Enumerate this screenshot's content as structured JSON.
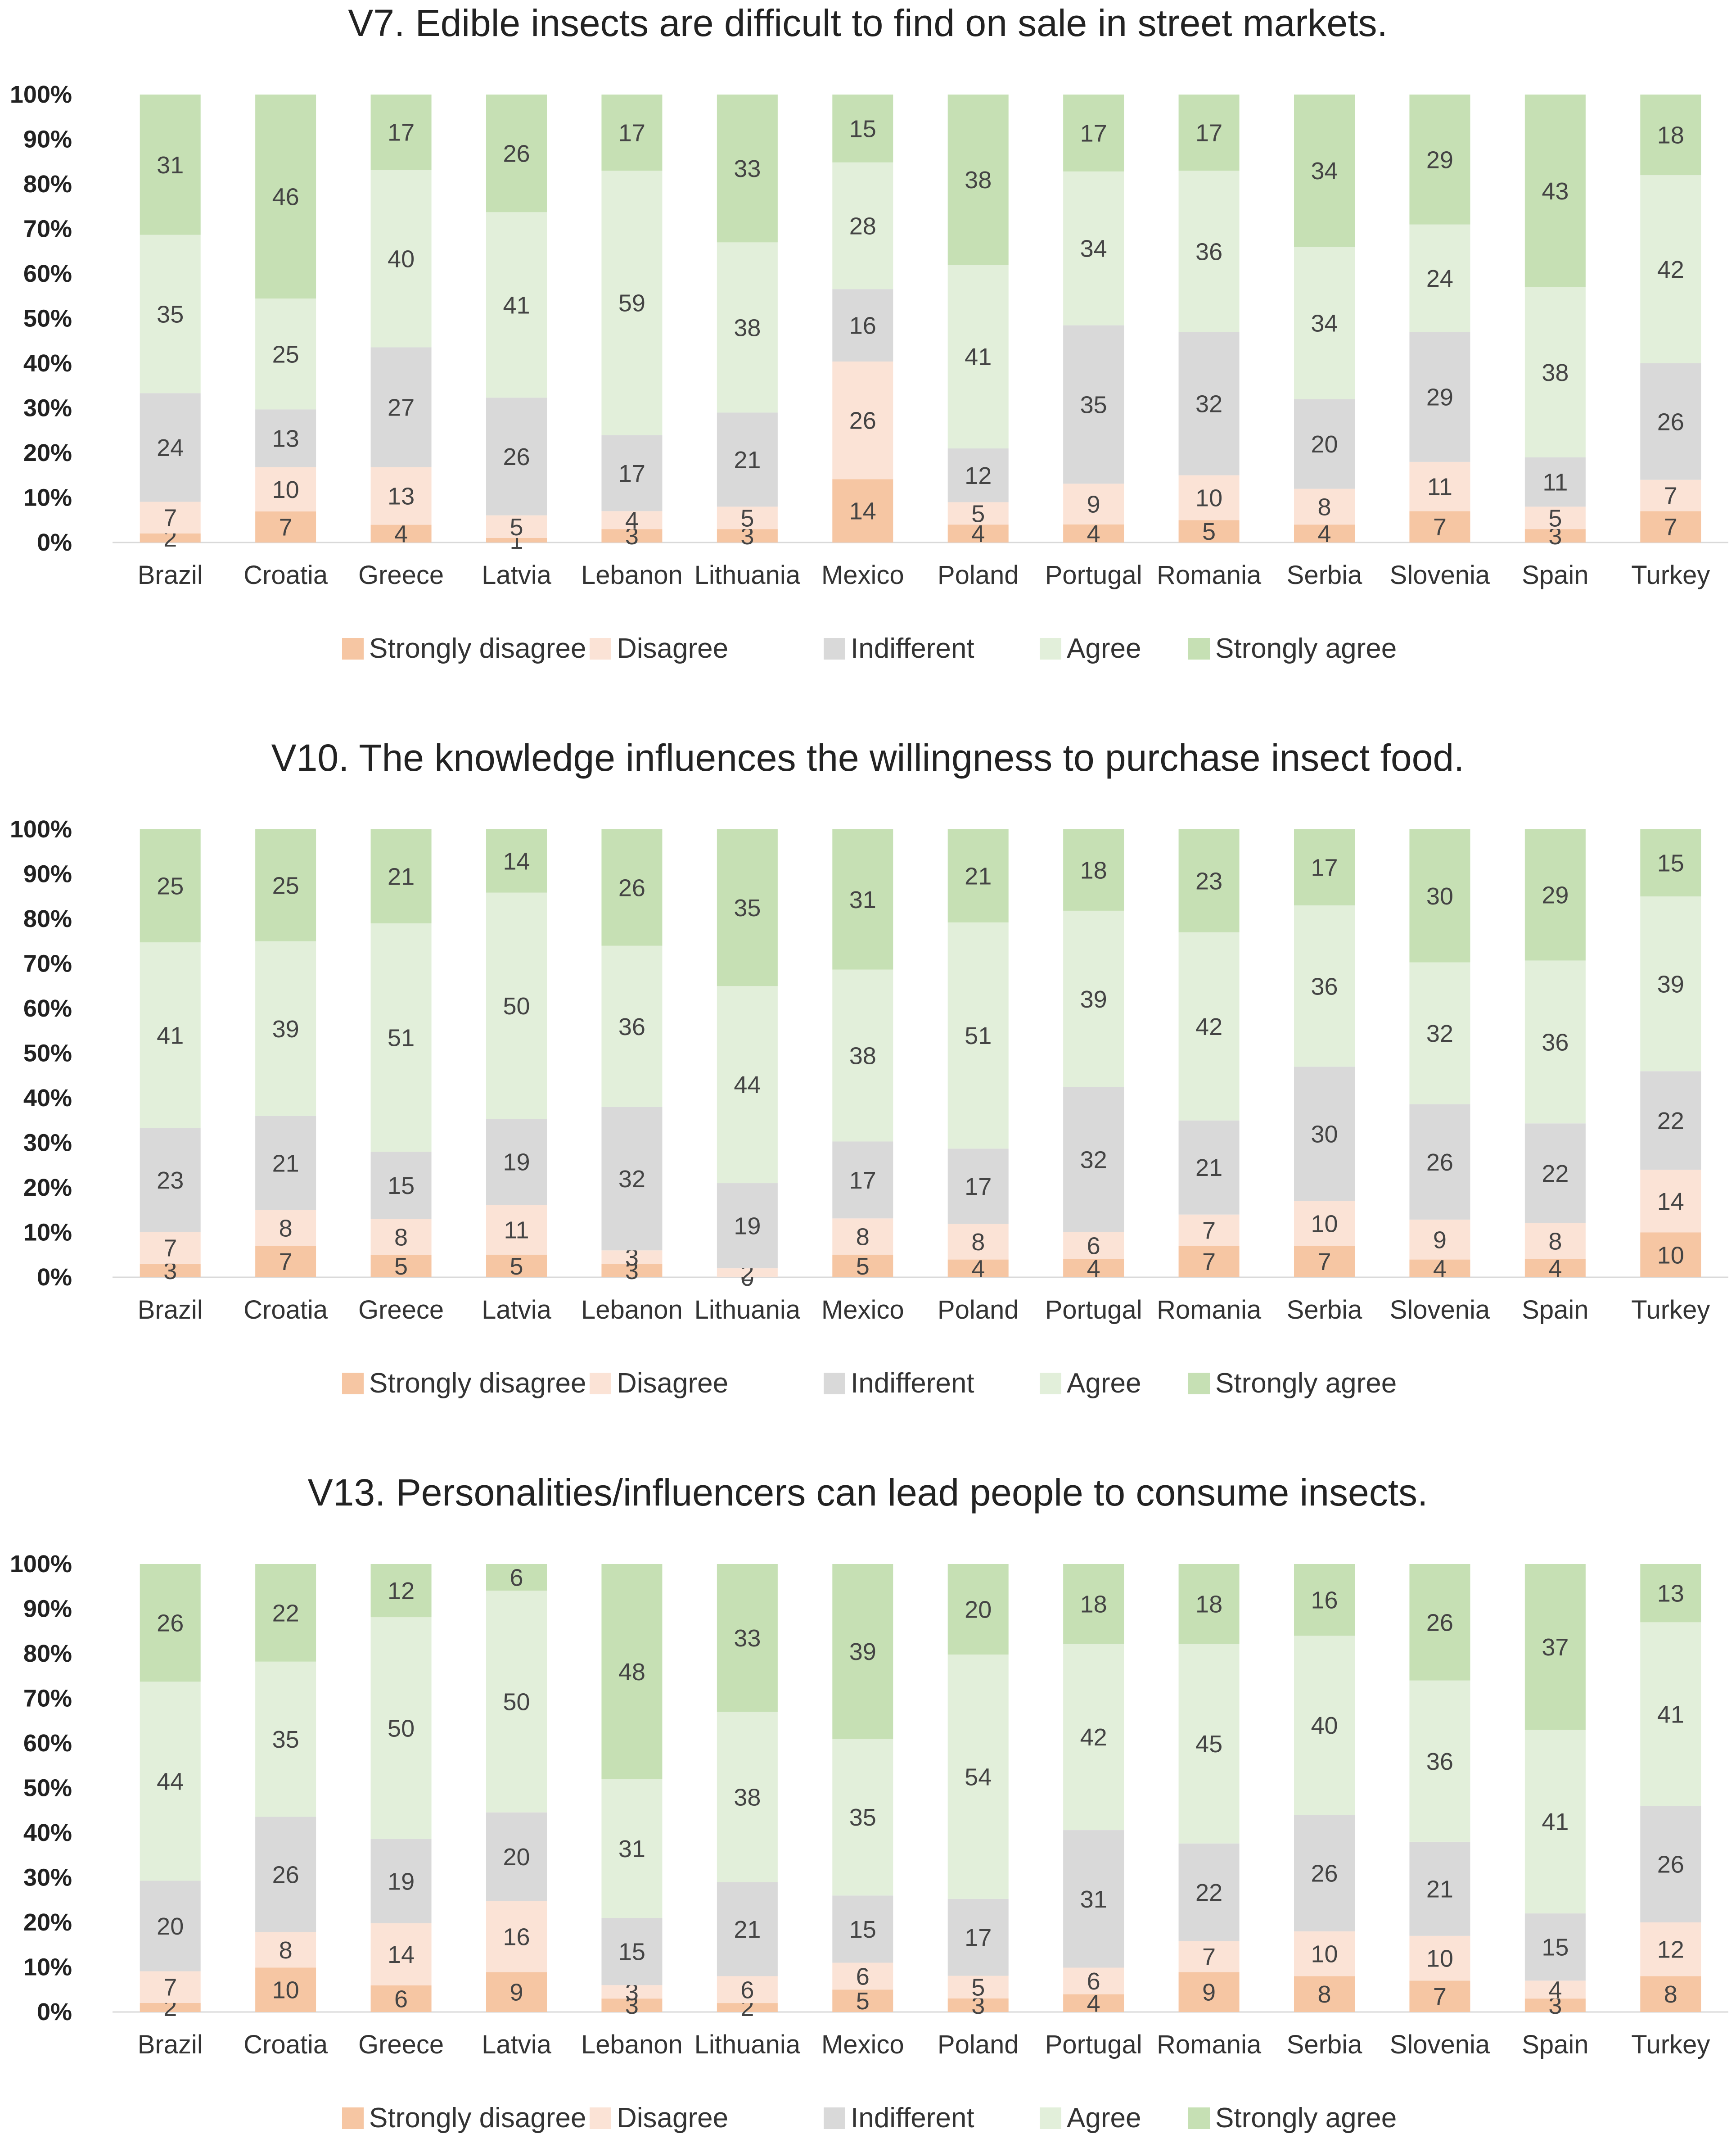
{
  "colors": {
    "Strongly disagree": "#f6c6a3",
    "Disagree": "#fbe3d6",
    "Indifferent": "#d9d9d9",
    "Agree": "#e2efda",
    "Strongly agree": "#c6e0b4"
  },
  "chart_data": [
    {
      "type": "bar",
      "stacked": true,
      "percent": true,
      "title": "V7. Edible insects are difficult to find on sale in street markets.",
      "categories": [
        "Brazil",
        "Croatia",
        "Greece",
        "Latvia",
        "Lebanon",
        "Lithuania",
        "Mexico",
        "Poland",
        "Portugal",
        "Romania",
        "Serbia",
        "Slovenia",
        "Spain",
        "Turkey"
      ],
      "yticks": [
        "0%",
        "10%",
        "20%",
        "30%",
        "40%",
        "50%",
        "60%",
        "70%",
        "80%",
        "90%",
        "100%"
      ],
      "ylim": [
        0,
        100
      ],
      "legend_position": "bottom",
      "series": [
        {
          "name": "Strongly disagree",
          "values": [
            2,
            7,
            4,
            1,
            3,
            3,
            14,
            4,
            4,
            5,
            4,
            7,
            3,
            7
          ]
        },
        {
          "name": "Disagree",
          "values": [
            7,
            10,
            13,
            5,
            4,
            5,
            26,
            5,
            9,
            10,
            8,
            11,
            5,
            7
          ]
        },
        {
          "name": "Indifferent",
          "values": [
            24,
            13,
            27,
            26,
            17,
            21,
            16,
            12,
            35,
            32,
            20,
            29,
            11,
            26
          ]
        },
        {
          "name": "Agree",
          "values": [
            35,
            25,
            40,
            41,
            59,
            38,
            28,
            41,
            34,
            36,
            34,
            24,
            38,
            42
          ]
        },
        {
          "name": "Strongly agree",
          "values": [
            31,
            46,
            17,
            26,
            17,
            33,
            15,
            38,
            17,
            17,
            34,
            29,
            43,
            18
          ]
        }
      ]
    },
    {
      "type": "bar",
      "stacked": true,
      "percent": true,
      "title": "V10. The knowledge influences the willingness to purchase insect food.",
      "categories": [
        "Brazil",
        "Croatia",
        "Greece",
        "Latvia",
        "Lebanon",
        "Lithuania",
        "Mexico",
        "Poland",
        "Portugal",
        "Romania",
        "Serbia",
        "Slovenia",
        "Spain",
        "Turkey"
      ],
      "yticks": [
        "0%",
        "10%",
        "20%",
        "30%",
        "40%",
        "50%",
        "60%",
        "70%",
        "80%",
        "90%",
        "100%"
      ],
      "ylim": [
        0,
        100
      ],
      "legend_position": "bottom",
      "series": [
        {
          "name": "Strongly disagree",
          "values": [
            3,
            7,
            5,
            5,
            3,
            0,
            5,
            4,
            4,
            7,
            7,
            4,
            4,
            10
          ]
        },
        {
          "name": "Disagree",
          "values": [
            7,
            8,
            8,
            11,
            3,
            2,
            8,
            8,
            6,
            7,
            10,
            9,
            8,
            14
          ]
        },
        {
          "name": "Indifferent",
          "values": [
            23,
            21,
            15,
            19,
            32,
            19,
            17,
            17,
            32,
            21,
            30,
            26,
            22,
            22
          ]
        },
        {
          "name": "Agree",
          "values": [
            41,
            39,
            51,
            50,
            36,
            44,
            38,
            51,
            39,
            42,
            36,
            32,
            36,
            39
          ]
        },
        {
          "name": "Strongly agree",
          "values": [
            25,
            25,
            21,
            14,
            26,
            35,
            31,
            21,
            18,
            23,
            17,
            30,
            29,
            15
          ]
        }
      ]
    },
    {
      "type": "bar",
      "stacked": true,
      "percent": true,
      "title": "V13. Personalities/influencers can lead people to consume insects.",
      "categories": [
        "Brazil",
        "Croatia",
        "Greece",
        "Latvia",
        "Lebanon",
        "Lithuania",
        "Mexico",
        "Poland",
        "Portugal",
        "Romania",
        "Serbia",
        "Slovenia",
        "Spain",
        "Turkey"
      ],
      "yticks": [
        "0%",
        "10%",
        "20%",
        "30%",
        "40%",
        "50%",
        "60%",
        "70%",
        "80%",
        "90%",
        "100%"
      ],
      "ylim": [
        0,
        100
      ],
      "legend_position": "bottom",
      "series": [
        {
          "name": "Strongly disagree",
          "values": [
            2,
            10,
            6,
            9,
            3,
            2,
            5,
            3,
            4,
            9,
            8,
            7,
            3,
            8
          ]
        },
        {
          "name": "Disagree",
          "values": [
            7,
            8,
            14,
            16,
            3,
            6,
            6,
            5,
            6,
            7,
            10,
            10,
            4,
            12
          ]
        },
        {
          "name": "Indifferent",
          "values": [
            20,
            26,
            19,
            20,
            15,
            21,
            15,
            17,
            31,
            22,
            26,
            21,
            15,
            26
          ]
        },
        {
          "name": "Agree",
          "values": [
            44,
            35,
            50,
            50,
            31,
            38,
            35,
            54,
            42,
            45,
            40,
            36,
            41,
            41
          ]
        },
        {
          "name": "Strongly agree",
          "values": [
            26,
            22,
            12,
            6,
            48,
            33,
            39,
            20,
            18,
            18,
            16,
            26,
            37,
            13
          ]
        }
      ]
    }
  ]
}
